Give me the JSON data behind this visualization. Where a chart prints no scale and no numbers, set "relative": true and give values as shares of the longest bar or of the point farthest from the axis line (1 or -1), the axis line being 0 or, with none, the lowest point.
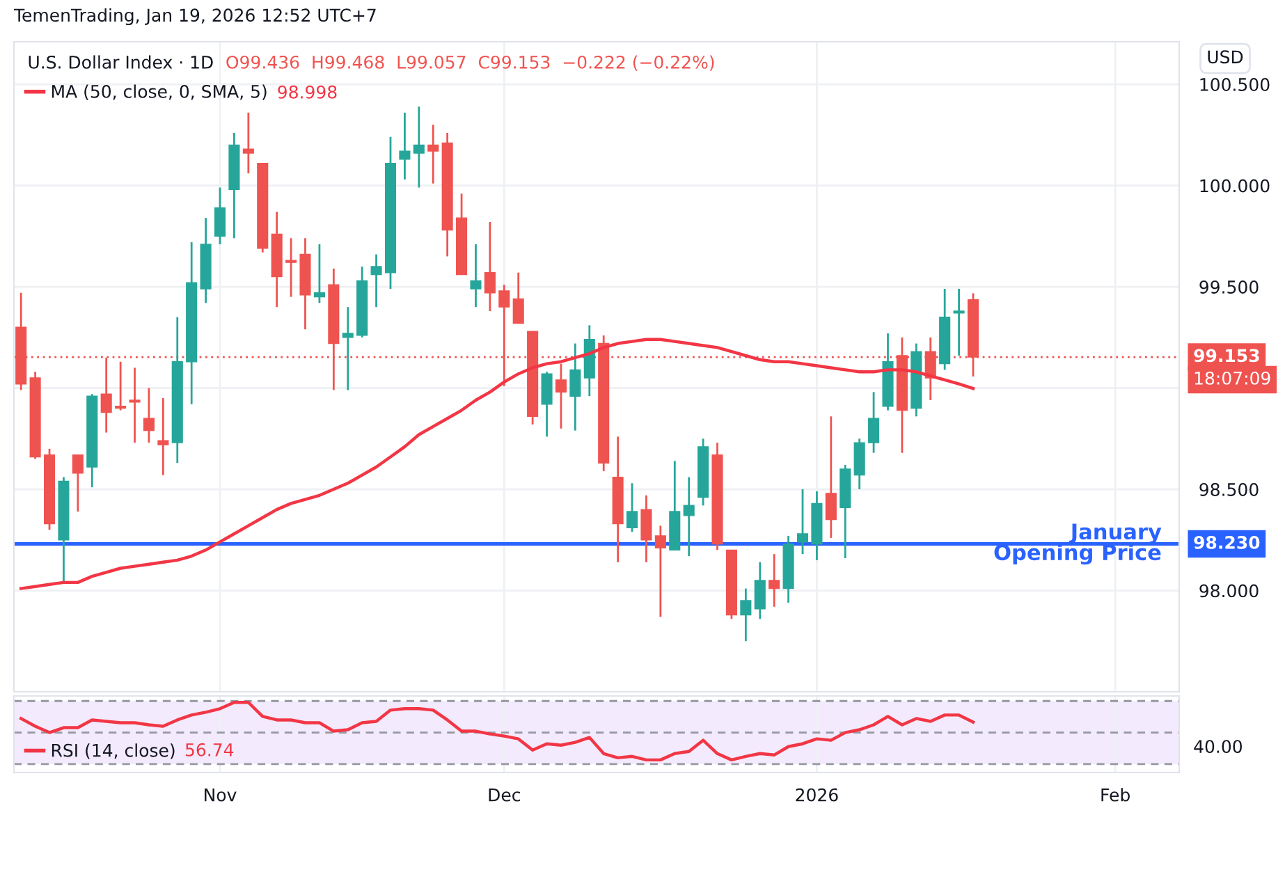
{
  "chart_data": [
    {
      "type": "candlestick",
      "title": "U.S. Dollar Index · 1D",
      "subtitle": "O99.436  H99.468  L99.057  C99.153  −0.222 (−0.22%)",
      "annotations": [
        "TemenTrading, Jan 19, 2026 12:52 UTC+7",
        "98.998",
        "USD",
        "18:07:09",
        "99.153",
        "98.230"
      ],
      "categories": [
        null,
        null,
        null,
        null,
        null,
        null,
        null,
        null,
        null,
        null,
        null,
        null,
        null,
        null,
        null,
        null,
        null,
        null,
        null,
        null,
        null,
        null,
        null,
        null,
        null,
        null,
        null,
        null,
        null,
        null,
        null,
        null,
        null,
        null,
        null,
        null,
        null,
        null,
        null,
        null,
        null,
        null,
        null,
        null,
        null,
        null,
        null,
        null,
        null,
        null,
        null,
        null,
        null,
        null,
        null,
        null,
        null,
        null,
        null,
        null,
        null,
        null,
        null,
        null,
        null,
        null,
        null,
        null,
        null,
        null,
        null,
        null,
        null,
        null,
        null,
        null,
        null,
        null,
        null,
        null,
        null,
        null
      ],
      "ohlc": [
        [
          99.3,
          99.47,
          98.99,
          99.02
        ],
        [
          99.05,
          99.08,
          98.65,
          98.66
        ],
        [
          98.67,
          98.7,
          98.3,
          98.33
        ],
        [
          98.25,
          98.56,
          98.04,
          98.54
        ],
        [
          98.67,
          98.67,
          98.39,
          98.58
        ],
        [
          98.61,
          98.97,
          98.51,
          98.96
        ],
        [
          98.97,
          99.15,
          98.78,
          98.88
        ],
        [
          98.91,
          99.13,
          98.89,
          98.9
        ],
        [
          98.94,
          99.1,
          98.73,
          98.93
        ],
        [
          98.85,
          99.0,
          98.73,
          98.79
        ],
        [
          98.74,
          98.95,
          98.57,
          98.72
        ],
        [
          98.73,
          99.35,
          98.63,
          99.13
        ],
        [
          99.13,
          99.72,
          98.92,
          99.52
        ],
        [
          99.49,
          99.84,
          99.42,
          99.71
        ],
        [
          99.75,
          99.99,
          99.71,
          99.89
        ],
        [
          99.98,
          100.26,
          99.74,
          100.2
        ],
        [
          100.18,
          100.36,
          100.06,
          100.16
        ],
        [
          100.11,
          100.11,
          99.67,
          99.69
        ],
        [
          99.76,
          99.87,
          99.4,
          99.55
        ],
        [
          99.63,
          99.74,
          99.45,
          99.62
        ],
        [
          99.66,
          99.74,
          99.29,
          99.46
        ],
        [
          99.45,
          99.71,
          99.42,
          99.47
        ],
        [
          99.51,
          99.59,
          98.99,
          99.22
        ],
        [
          99.25,
          99.4,
          98.99,
          99.27
        ],
        [
          99.26,
          99.6,
          99.25,
          99.53
        ],
        [
          99.56,
          99.66,
          99.4,
          99.6
        ],
        [
          99.57,
          100.24,
          99.49,
          100.11
        ],
        [
          100.13,
          100.36,
          100.03,
          100.17
        ],
        [
          100.16,
          100.39,
          99.99,
          100.2
        ],
        [
          100.2,
          100.3,
          100.01,
          100.17
        ],
        [
          100.21,
          100.26,
          99.65,
          99.78
        ],
        [
          99.84,
          99.96,
          99.56,
          99.56
        ],
        [
          99.49,
          99.71,
          99.4,
          99.53
        ],
        [
          99.57,
          99.82,
          99.38,
          99.47
        ],
        [
          99.48,
          99.51,
          99.01,
          99.4
        ],
        [
          99.44,
          99.57,
          99.32,
          99.32
        ],
        [
          99.28,
          99.28,
          98.82,
          98.86
        ],
        [
          98.92,
          99.08,
          98.76,
          99.07
        ],
        [
          99.04,
          99.12,
          98.8,
          98.98
        ],
        [
          98.96,
          99.22,
          98.79,
          99.09
        ],
        [
          99.05,
          99.31,
          98.96,
          99.24
        ],
        [
          99.22,
          99.26,
          98.59,
          98.63
        ],
        [
          98.56,
          98.76,
          98.14,
          98.33
        ],
        [
          98.31,
          98.53,
          98.29,
          98.39
        ],
        [
          98.4,
          98.47,
          98.14,
          98.25
        ],
        [
          98.27,
          98.32,
          97.87,
          98.21
        ],
        [
          98.2,
          98.64,
          98.2,
          98.39
        ],
        [
          98.37,
          98.56,
          98.17,
          98.42
        ],
        [
          98.46,
          98.75,
          98.42,
          98.71
        ],
        [
          98.67,
          98.73,
          98.2,
          98.23
        ],
        [
          98.2,
          98.2,
          97.86,
          97.88
        ],
        [
          97.88,
          98.01,
          97.75,
          97.95
        ],
        [
          97.91,
          98.14,
          97.86,
          98.05
        ],
        [
          98.05,
          98.18,
          97.92,
          98.01
        ],
        [
          98.01,
          98.27,
          97.94,
          98.23
        ],
        [
          98.24,
          98.5,
          98.18,
          98.28
        ],
        [
          98.23,
          98.49,
          98.15,
          98.43
        ],
        [
          98.48,
          98.86,
          98.26,
          98.35
        ],
        [
          98.41,
          98.62,
          98.16,
          98.6
        ],
        [
          98.57,
          98.75,
          98.5,
          98.73
        ],
        [
          98.73,
          98.98,
          98.68,
          98.85
        ],
        [
          98.91,
          99.27,
          98.89,
          99.13
        ],
        [
          99.16,
          99.25,
          98.68,
          98.89
        ],
        [
          98.9,
          99.22,
          98.86,
          99.18
        ],
        [
          99.18,
          99.25,
          98.94,
          99.05
        ],
        [
          99.12,
          99.49,
          99.09,
          99.35
        ],
        [
          99.37,
          99.49,
          99.16,
          99.38
        ],
        [
          99.436,
          99.468,
          99.057,
          99.153
        ],
        null,
        null,
        null,
        null,
        null,
        null,
        null,
        null,
        null,
        null,
        null,
        null,
        null,
        null
      ],
      "colors": [
        "#ef5350",
        "#ef5350",
        "#ef5350",
        "#26a69a",
        "#ef5350",
        "#26a69a",
        "#ef5350",
        "#ef5350",
        "#ef5350",
        "#ef5350",
        "#ef5350",
        "#26a69a",
        "#26a69a",
        "#26a69a",
        "#26a69a",
        "#26a69a",
        "#ef5350",
        "#ef5350",
        "#ef5350",
        "#ef5350",
        "#ef5350",
        "#26a69a",
        "#ef5350",
        "#26a69a",
        "#26a69a",
        "#26a69a",
        "#26a69a",
        "#26a69a",
        "#26a69a",
        "#ef5350",
        "#ef5350",
        "#ef5350",
        "#26a69a",
        "#ef5350",
        "#ef5350",
        "#ef5350",
        "#ef5350",
        "#26a69a",
        "#ef5350",
        "#26a69a",
        "#26a69a",
        "#ef5350",
        "#ef5350",
        "#26a69a",
        "#ef5350",
        "#ef5350",
        "#26a69a",
        "#26a69a",
        "#26a69a",
        "#ef5350",
        "#ef5350",
        "#26a69a",
        "#26a69a",
        "#ef5350",
        "#26a69a",
        "#26a69a",
        "#26a69a",
        "#ef5350",
        "#26a69a",
        "#26a69a",
        "#26a69a",
        "#26a69a",
        "#ef5350",
        "#26a69a",
        "#ef5350",
        "#26a69a",
        "#26a69a",
        "#ef5350",
        null,
        null,
        null,
        null,
        null,
        null,
        null,
        null,
        null,
        null,
        null,
        null,
        null,
        null
      ],
      "series": [
        {
          "name": "MA (50, close, 0, SMA, 5)",
          "type": "line",
          "color": "#f23645",
          "values": [
            98.01,
            98.02,
            98.03,
            98.04,
            98.04,
            98.07,
            98.09,
            98.11,
            98.12,
            98.13,
            98.14,
            98.15,
            98.17,
            98.2,
            98.24,
            98.28,
            98.32,
            98.36,
            98.4,
            98.43,
            98.45,
            98.47,
            98.5,
            98.53,
            98.57,
            98.61,
            98.66,
            98.71,
            98.77,
            98.81,
            98.85,
            98.89,
            98.94,
            98.98,
            99.03,
            99.07,
            99.1,
            99.12,
            99.13,
            99.15,
            99.17,
            99.2,
            99.22,
            99.23,
            99.24,
            99.24,
            99.23,
            99.22,
            99.21,
            99.2,
            99.18,
            99.16,
            99.14,
            99.13,
            99.13,
            99.12,
            99.11,
            99.1,
            99.09,
            99.08,
            99.08,
            99.09,
            99.09,
            99.08,
            99.06,
            99.04,
            99.02,
            98.998,
            null,
            null,
            null,
            null,
            null,
            null,
            null,
            null,
            null,
            null,
            null,
            null,
            null,
            null
          ]
        }
      ],
      "ylim": [
        97.5,
        100.71
      ],
      "yticks": [
        {
          "value": 98,
          "label": "98.000"
        },
        {
          "value": 98.5,
          "label": "98.500"
        },
        {
          "value": 99,
          "label": null
        },
        {
          "value": 99.5,
          "label": "99.500"
        },
        {
          "value": 100,
          "label": "100.000"
        },
        {
          "value": 100.5,
          "label": "100.500"
        }
      ],
      "ref_lines": [
        {
          "axis": "y",
          "value": 99.153,
          "color": "#ef5350",
          "line_style": "dotted"
        },
        {
          "axis": "y",
          "value": 98.23,
          "label": "January\nOpening Price",
          "color": "#2962ff",
          "line_style": "solid"
        }
      ],
      "grid": true,
      "legend": "top left",
      "tick_labels": "y"
    },
    {
      "type": "line",
      "categories": [
        null,
        null,
        null,
        null,
        null,
        null,
        null,
        null,
        null,
        null,
        null,
        null,
        null,
        null,
        "Nov",
        null,
        null,
        null,
        null,
        null,
        null,
        null,
        null,
        null,
        null,
        null,
        null,
        null,
        null,
        null,
        null,
        null,
        null,
        null,
        "Dec",
        null,
        null,
        null,
        null,
        null,
        null,
        null,
        null,
        null,
        null,
        null,
        null,
        null,
        null,
        null,
        null,
        null,
        null,
        null,
        null,
        null,
        "2026",
        null,
        null,
        null,
        null,
        null,
        null,
        null,
        null,
        null,
        null,
        null,
        null,
        null,
        null,
        null,
        null,
        null,
        null,
        null,
        null,
        "Feb",
        null,
        null,
        null,
        null
      ],
      "annotations": [
        "56.74",
        "40.00"
      ],
      "relative": true,
      "series": [
        {
          "name": "RSI (14, close)",
          "color": "#f23645",
          "values": [
            0.77,
            0.66,
            0.57,
            0.64,
            0.64,
            0.75,
            0.73,
            0.71,
            0.71,
            0.68,
            0.66,
            0.75,
            0.82,
            0.86,
            0.91,
            1,
            1,
            0.8,
            0.75,
            0.75,
            0.71,
            0.71,
            0.59,
            0.61,
            0.71,
            0.73,
            0.89,
            0.91,
            0.91,
            0.89,
            0.75,
            0.59,
            0.59,
            0.55,
            0.52,
            0.48,
            0.32,
            0.41,
            0.39,
            0.43,
            0.5,
            0.27,
            0.21,
            0.23,
            0.18,
            0.18,
            0.27,
            0.3,
            0.46,
            0.27,
            0.18,
            0.23,
            0.27,
            0.25,
            0.37,
            0.41,
            0.48,
            0.46,
            0.57,
            0.61,
            0.68,
            0.8,
            0.68,
            0.77,
            0.73,
            0.82,
            0.82,
            0.72,
            null,
            null,
            null,
            null,
            null,
            null,
            null,
            null,
            null,
            null,
            null,
            null,
            null,
            null
          ]
        }
      ],
      "ref_lines": [
        {
          "axis": "y",
          "value": 1.02,
          "color": "#9598a1",
          "line_style": "dashed"
        },
        {
          "axis": "y",
          "value": 0.57,
          "color": "#9598a1",
          "line_style": "dashed"
        },
        {
          "axis": "y",
          "value": 0.12,
          "color": "#9598a1",
          "line_style": "dashed"
        }
      ],
      "bands": [
        {
          "axis": "y",
          "from": 0.12,
          "to": 1.02,
          "color": "#f3eafd"
        }
      ],
      "grid": "x",
      "legend": "bottom left"
    }
  ]
}
